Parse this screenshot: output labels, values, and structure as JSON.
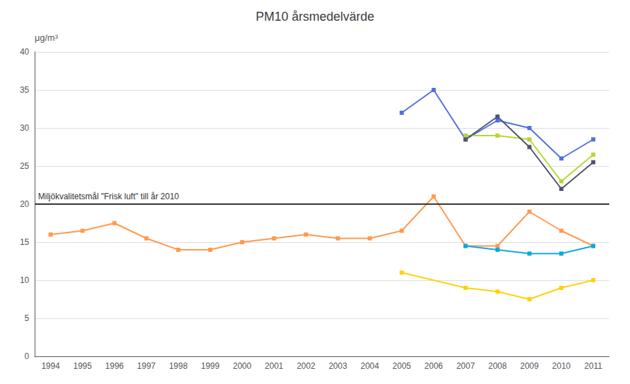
{
  "chart_data": {
    "type": "line",
    "title": "PM10 årsmedelvärde",
    "ylabel": "μg/m³",
    "categories": [
      "1994",
      "1995",
      "1996",
      "1997",
      "1998",
      "1999",
      "2000",
      "2001",
      "2002",
      "2003",
      "2004",
      "2005",
      "2006",
      "2007",
      "2008",
      "2009",
      "2010",
      "2011"
    ],
    "series": [
      {
        "values": [
          null,
          null,
          null,
          null,
          null,
          null,
          null,
          null,
          null,
          null,
          null,
          32,
          35,
          28.5,
          31,
          30,
          26,
          28.5
        ]
      },
      {
        "values": [
          null,
          null,
          null,
          null,
          null,
          null,
          null,
          null,
          null,
          null,
          null,
          null,
          null,
          29,
          29,
          28.5,
          23,
          26.5
        ]
      },
      {
        "values": [
          null,
          null,
          null,
          null,
          null,
          null,
          null,
          null,
          null,
          null,
          null,
          null,
          null,
          28.5,
          31.5,
          27.5,
          22,
          25.5
        ]
      },
      {
        "values": [
          16,
          16.5,
          17.5,
          15.5,
          14,
          14,
          15,
          15.5,
          16,
          15.5,
          15.5,
          16.5,
          21,
          14.5,
          14.5,
          19,
          16.5,
          14.5
        ]
      },
      {
        "values": [
          null,
          null,
          null,
          null,
          null,
          null,
          null,
          null,
          null,
          null,
          null,
          null,
          null,
          14.5,
          14,
          13.5,
          13.5,
          14.5
        ]
      },
      {
        "values": [
          null,
          null,
          null,
          null,
          null,
          null,
          null,
          null,
          null,
          null,
          null,
          11,
          null,
          9,
          8.5,
          7.5,
          9,
          10
        ]
      }
    ],
    "ylim": [
      0,
      40
    ],
    "yticks": [
      0,
      5,
      10,
      15,
      20,
      25,
      30,
      35,
      40
    ],
    "grid": true,
    "marker": "square",
    "annotations": [
      {
        "text": "Miljökvalitetsmål \"Frisk luft\" till år 2010",
        "y": 20
      }
    ]
  }
}
